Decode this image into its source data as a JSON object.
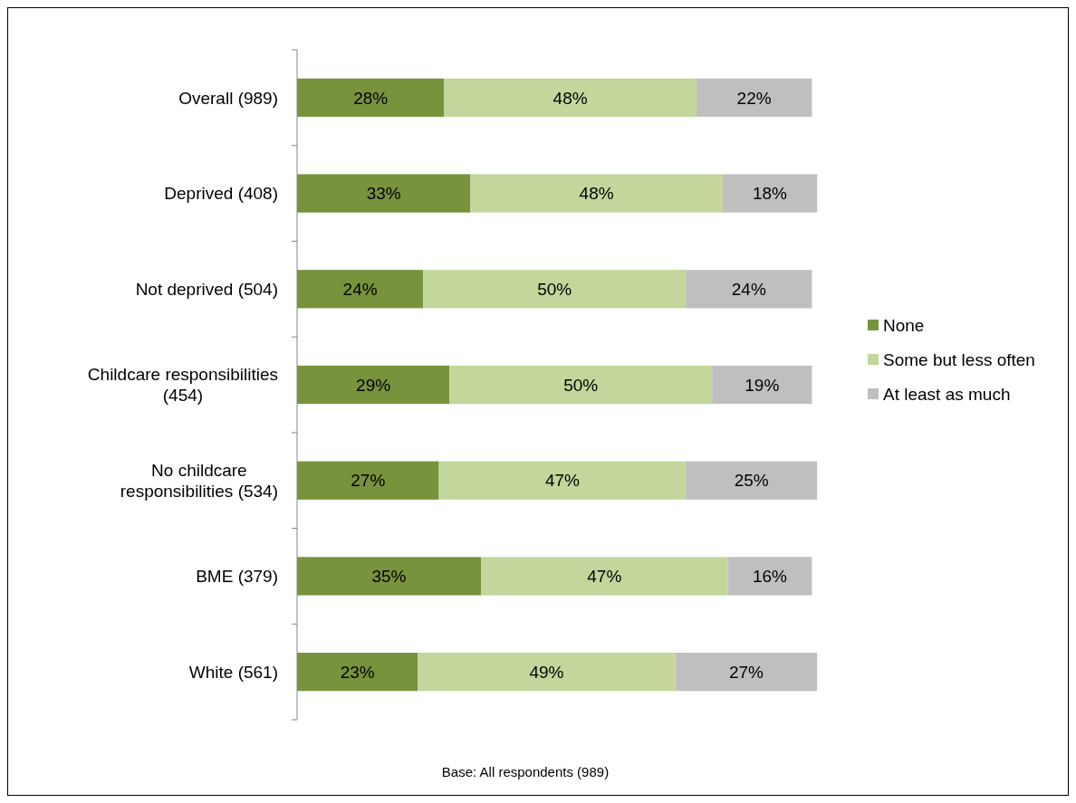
{
  "chart_data": {
    "type": "bar",
    "orientation": "horizontal",
    "stacked": true,
    "legend": "right",
    "tick_labels": "y",
    "categories": [
      "Overall (989)",
      "Deprived (408)",
      "Not deprived (504)",
      "Childcare responsibilities (454)",
      "No childcare responsibilities (534)",
      "BME (379)",
      "White (561)"
    ],
    "series": [
      {
        "name": "None",
        "color": "#77933c",
        "values": [
          28,
          33,
          24,
          29,
          27,
          35,
          23
        ],
        "value_labels": [
          "28%",
          "33%",
          "24%",
          "29%",
          "27%",
          "35%",
          "23%"
        ]
      },
      {
        "name": "Some but less often",
        "color": "#c3d69b",
        "values": [
          48,
          48,
          50,
          50,
          47,
          47,
          49
        ],
        "value_labels": [
          "48%",
          "48%",
          "50%",
          "50%",
          "47%",
          "47%",
          "49%"
        ]
      },
      {
        "name": "At least as much",
        "color": "#bfbfbf",
        "values": [
          22,
          18,
          24,
          19,
          25,
          16,
          27
        ],
        "value_labels": [
          "22%",
          "18%",
          "24%",
          "19%",
          "25%",
          "16%",
          "27%"
        ]
      }
    ],
    "annotations": [
      "Base: All respondents (989)"
    ]
  }
}
